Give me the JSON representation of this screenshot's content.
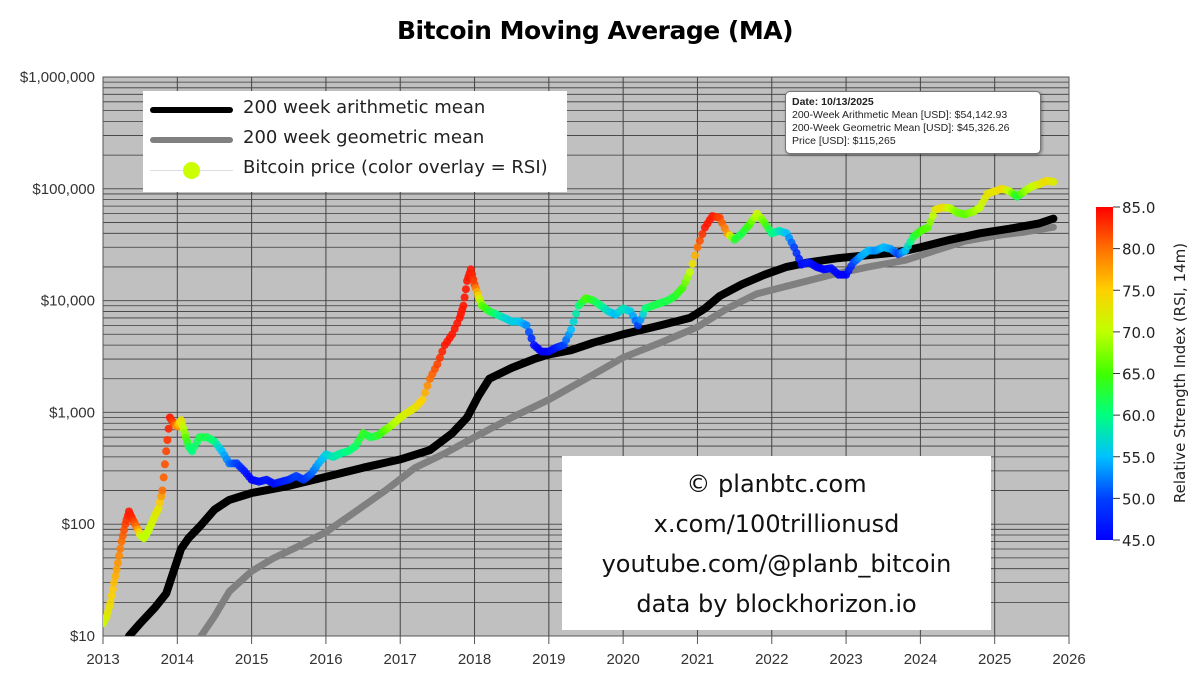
{
  "chart_data": {
    "type": "scatter",
    "title": "Bitcoin Moving Average (MA)",
    "xlabel": "",
    "ylabel": "",
    "yscale": "log",
    "xlim": [
      2013,
      2026
    ],
    "ylim": [
      10,
      1000000
    ],
    "grid": true,
    "x_ticks": [
      "2013",
      "2014",
      "2015",
      "2016",
      "2017",
      "2018",
      "2019",
      "2020",
      "2021",
      "2022",
      "2023",
      "2024",
      "2025",
      "2026"
    ],
    "y_ticks": [
      {
        "value": 10,
        "label": "$10"
      },
      {
        "value": 100,
        "label": "$100"
      },
      {
        "value": 1000,
        "label": "$1,000"
      },
      {
        "value": 10000,
        "label": "$10,000"
      },
      {
        "value": 100000,
        "label": "$100,000"
      },
      {
        "value": 1000000,
        "label": "$1,000,000"
      }
    ],
    "legend": {
      "position": "top-left",
      "entries": [
        {
          "label": "200 week arithmetic mean",
          "color": "#000000",
          "kind": "line"
        },
        {
          "label": "200 week geometric mean",
          "color": "#808080",
          "kind": "line"
        },
        {
          "label": "Bitcoin price (color overlay = RSI)",
          "color": "#ccff00",
          "kind": "marker"
        }
      ]
    },
    "colorbar": {
      "label": "Relative Strength Index (RSI, 14m)",
      "range": [
        45,
        85
      ],
      "ticks": [
        "45.0",
        "50.0",
        "55.0",
        "60.0",
        "65.0",
        "70.0",
        "75.0",
        "80.0",
        "85.0"
      ],
      "colormap": "jet"
    },
    "series": [
      {
        "name": "200 week arithmetic mean",
        "color": "#000000",
        "x": [
          2013.35,
          2013.5,
          2013.7,
          2013.85,
          2013.95,
          2014.05,
          2014.15,
          2014.3,
          2014.5,
          2014.7,
          2015.0,
          2015.5,
          2016.0,
          2016.5,
          2017.0,
          2017.4,
          2017.7,
          2017.9,
          2018.05,
          2018.2,
          2018.5,
          2018.8,
          2019.0,
          2019.3,
          2019.6,
          2020.0,
          2020.5,
          2020.9,
          2021.1,
          2021.3,
          2021.6,
          2021.9,
          2022.2,
          2022.5,
          2022.9,
          2023.3,
          2023.7,
          2024.0,
          2024.4,
          2024.8,
          2025.2,
          2025.6,
          2025.79
        ],
        "y": [
          10,
          13,
          18,
          24,
          38,
          60,
          75,
          95,
          135,
          165,
          190,
          220,
          265,
          320,
          380,
          460,
          650,
          900,
          1400,
          2000,
          2500,
          3000,
          3300,
          3600,
          4200,
          5000,
          6000,
          7000,
          8500,
          11000,
          14000,
          17000,
          20000,
          22000,
          24000,
          25500,
          27000,
          30000,
          35000,
          40000,
          44000,
          49000,
          54142.93
        ]
      },
      {
        "name": "200 week geometric mean",
        "color": "#808080",
        "x": [
          2014.32,
          2014.5,
          2014.7,
          2015.0,
          2015.3,
          2015.6,
          2016.0,
          2016.4,
          2016.8,
          2017.2,
          2017.6,
          2018.0,
          2018.5,
          2019.0,
          2019.5,
          2020.0,
          2020.5,
          2021.0,
          2021.4,
          2021.8,
          2022.3,
          2022.8,
          2023.3,
          2023.8,
          2024.2,
          2024.6,
          2025.0,
          2025.4,
          2025.79
        ],
        "y": [
          10,
          15,
          25,
          38,
          50,
          62,
          85,
          130,
          200,
          320,
          430,
          600,
          900,
          1300,
          2000,
          3100,
          4200,
          5800,
          8500,
          11500,
          14000,
          17000,
          20000,
          23000,
          28000,
          34000,
          38000,
          41000,
          45326.26
        ]
      },
      {
        "name": "Bitcoin price (color overlay = RSI)",
        "x": [
          2013.0,
          2013.05,
          2013.1,
          2013.15,
          2013.2,
          2013.25,
          2013.3,
          2013.35,
          2013.4,
          2013.45,
          2013.5,
          2013.55,
          2013.6,
          2013.65,
          2013.7,
          2013.75,
          2013.8,
          2013.85,
          2013.9,
          2013.95,
          2014.0,
          2014.05,
          2014.1,
          2014.15,
          2014.2,
          2014.3,
          2014.4,
          2014.5,
          2014.6,
          2014.7,
          2014.8,
          2014.9,
          2015.0,
          2015.1,
          2015.2,
          2015.3,
          2015.4,
          2015.5,
          2015.6,
          2015.7,
          2015.8,
          2015.9,
          2016.0,
          2016.1,
          2016.2,
          2016.3,
          2016.4,
          2016.5,
          2016.6,
          2016.7,
          2016.8,
          2016.9,
          2017.0,
          2017.1,
          2017.2,
          2017.3,
          2017.4,
          2017.5,
          2017.6,
          2017.7,
          2017.8,
          2017.85,
          2017.9,
          2017.95,
          2018.0,
          2018.05,
          2018.1,
          2018.2,
          2018.3,
          2018.4,
          2018.5,
          2018.6,
          2018.7,
          2018.8,
          2018.9,
          2019.0,
          2019.1,
          2019.2,
          2019.3,
          2019.4,
          2019.5,
          2019.6,
          2019.7,
          2019.8,
          2019.9,
          2020.0,
          2020.1,
          2020.2,
          2020.3,
          2020.4,
          2020.5,
          2020.6,
          2020.7,
          2020.8,
          2020.9,
          2021.0,
          2021.1,
          2021.2,
          2021.3,
          2021.4,
          2021.5,
          2021.6,
          2021.7,
          2021.8,
          2021.9,
          2022.0,
          2022.1,
          2022.2,
          2022.3,
          2022.4,
          2022.5,
          2022.6,
          2022.7,
          2022.8,
          2022.9,
          2023.0,
          2023.1,
          2023.2,
          2023.3,
          2023.4,
          2023.5,
          2023.6,
          2023.7,
          2023.8,
          2023.9,
          2024.0,
          2024.1,
          2024.2,
          2024.3,
          2024.4,
          2024.5,
          2024.6,
          2024.7,
          2024.8,
          2024.9,
          2025.0,
          2025.1,
          2025.2,
          2025.3,
          2025.4,
          2025.5,
          2025.6,
          2025.7,
          2025.79
        ],
        "y": [
          13,
          15,
          20,
          30,
          45,
          70,
          100,
          130,
          110,
          95,
          80,
          75,
          85,
          100,
          120,
          140,
          200,
          450,
          900,
          800,
          750,
          850,
          650,
          500,
          450,
          600,
          600,
          550,
          450,
          350,
          350,
          300,
          250,
          240,
          250,
          230,
          240,
          250,
          270,
          250,
          280,
          350,
          420,
          400,
          430,
          450,
          500,
          650,
          600,
          620,
          700,
          780,
          900,
          1000,
          1100,
          1300,
          2000,
          2700,
          4000,
          5000,
          7000,
          9000,
          15000,
          19000,
          14000,
          11000,
          9000,
          8000,
          7500,
          7000,
          6500,
          6500,
          6000,
          4000,
          3500,
          3500,
          3800,
          4000,
          5500,
          9000,
          10500,
          10000,
          9000,
          8000,
          7500,
          8500,
          8000,
          6000,
          8500,
          9000,
          9500,
          10000,
          11000,
          13000,
          18000,
          30000,
          45000,
          57000,
          55000,
          40000,
          35000,
          40000,
          48000,
          60000,
          50000,
          40000,
          42000,
          40000,
          30000,
          21000,
          22000,
          20000,
          19000,
          19500,
          17000,
          17000,
          22000,
          25000,
          28000,
          28000,
          30000,
          29000,
          26000,
          28000,
          37000,
          42000,
          45000,
          65000,
          68000,
          67000,
          61000,
          59000,
          62000,
          68000,
          90000,
          95000,
          100000,
          95000,
          85000,
          95000,
          105000,
          110000,
          118000,
          115265
        ],
        "rsi": [
          70,
          72,
          74,
          76,
          78,
          80,
          82,
          84,
          83,
          80,
          72,
          70,
          70,
          71,
          72,
          73,
          80,
          82,
          84,
          82,
          78,
          73,
          68,
          62,
          60,
          62,
          62,
          60,
          55,
          52,
          50,
          47,
          45,
          46,
          47,
          46,
          47,
          48,
          50,
          49,
          51,
          54,
          56,
          58,
          59,
          60,
          61,
          64,
          62,
          63,
          66,
          69,
          71,
          72,
          73,
          75,
          80,
          82,
          84,
          84,
          84,
          84,
          84,
          84,
          82,
          74,
          66,
          63,
          60,
          57,
          56,
          56,
          53,
          46,
          45,
          45,
          47,
          50,
          55,
          60,
          65,
          63,
          60,
          57,
          55,
          58,
          56,
          50,
          60,
          62,
          62,
          62,
          63,
          65,
          70,
          80,
          84,
          84,
          82,
          78,
          63,
          62,
          65,
          71,
          66,
          60,
          58,
          55,
          50,
          46,
          47,
          45,
          45,
          46,
          45,
          45,
          50,
          54,
          55,
          53,
          55,
          54,
          50,
          55,
          62,
          65,
          66,
          72,
          74,
          70,
          67,
          66,
          68,
          70,
          73,
          73,
          74,
          70,
          62,
          68,
          70,
          72,
          74,
          72
        ]
      }
    ],
    "annotation": {
      "date": "Date: 10/13/2025",
      "arith": "200-Week Arithmetic Mean [USD]: $54,142.93",
      "geom": "200-Week Geometric Mean [USD]: $45,326.26",
      "price": "Price [USD]: $115,265"
    }
  },
  "watermark": {
    "line1": "© planbtc.com",
    "line2": "x.com/100trillionusd",
    "line3": "youtube.com/@planb_bitcoin",
    "line4": "data by blockhorizon.io"
  }
}
